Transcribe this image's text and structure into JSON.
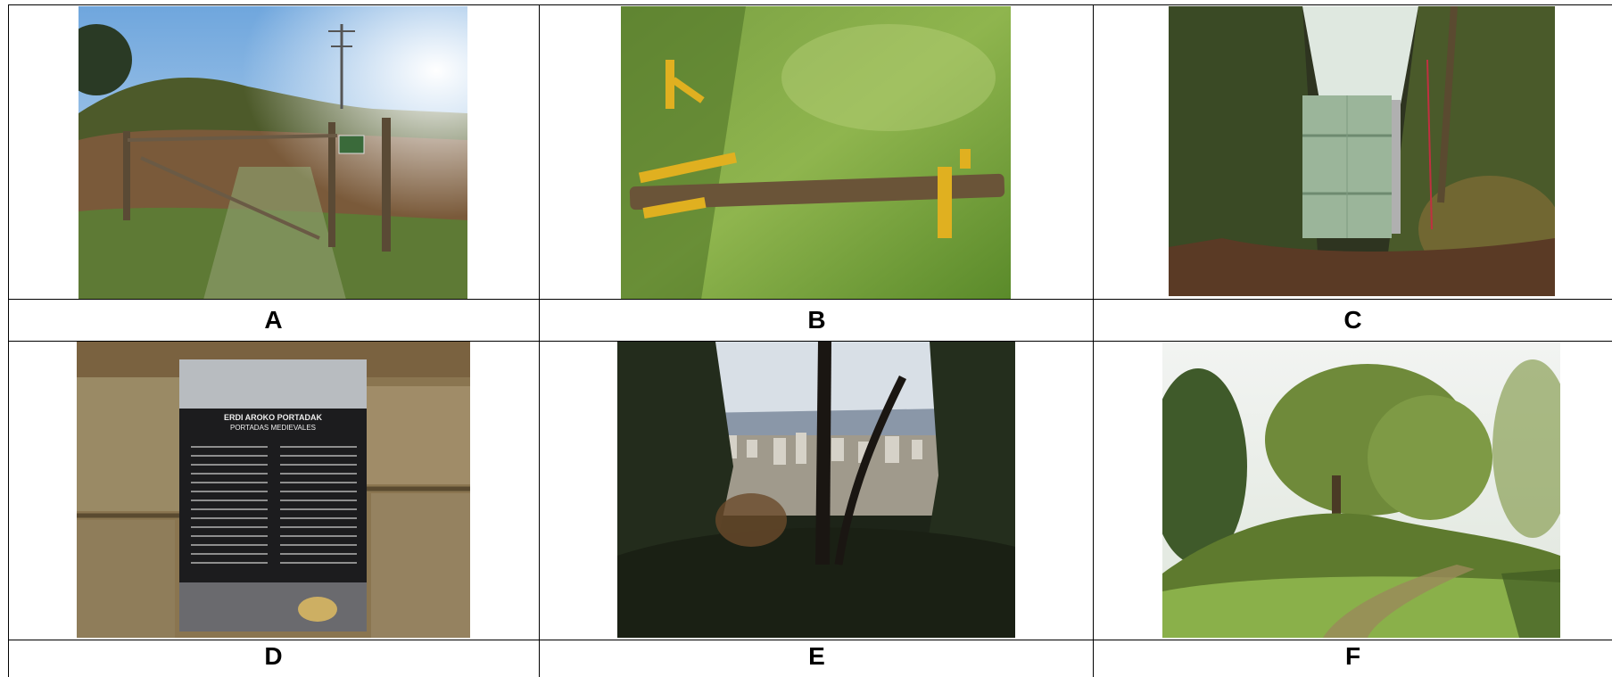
{
  "figure": {
    "panels": [
      {
        "id": "A",
        "label": "A"
      },
      {
        "id": "B",
        "label": "B"
      },
      {
        "id": "C",
        "label": "C"
      },
      {
        "id": "D",
        "label": "D"
      },
      {
        "id": "E",
        "label": "E"
      },
      {
        "id": "F",
        "label": "F"
      }
    ]
  },
  "sign": {
    "title_basque": "ERDI AROKO PORTADAK",
    "title_spanish": "PORTADAS MEDIEVALES"
  }
}
